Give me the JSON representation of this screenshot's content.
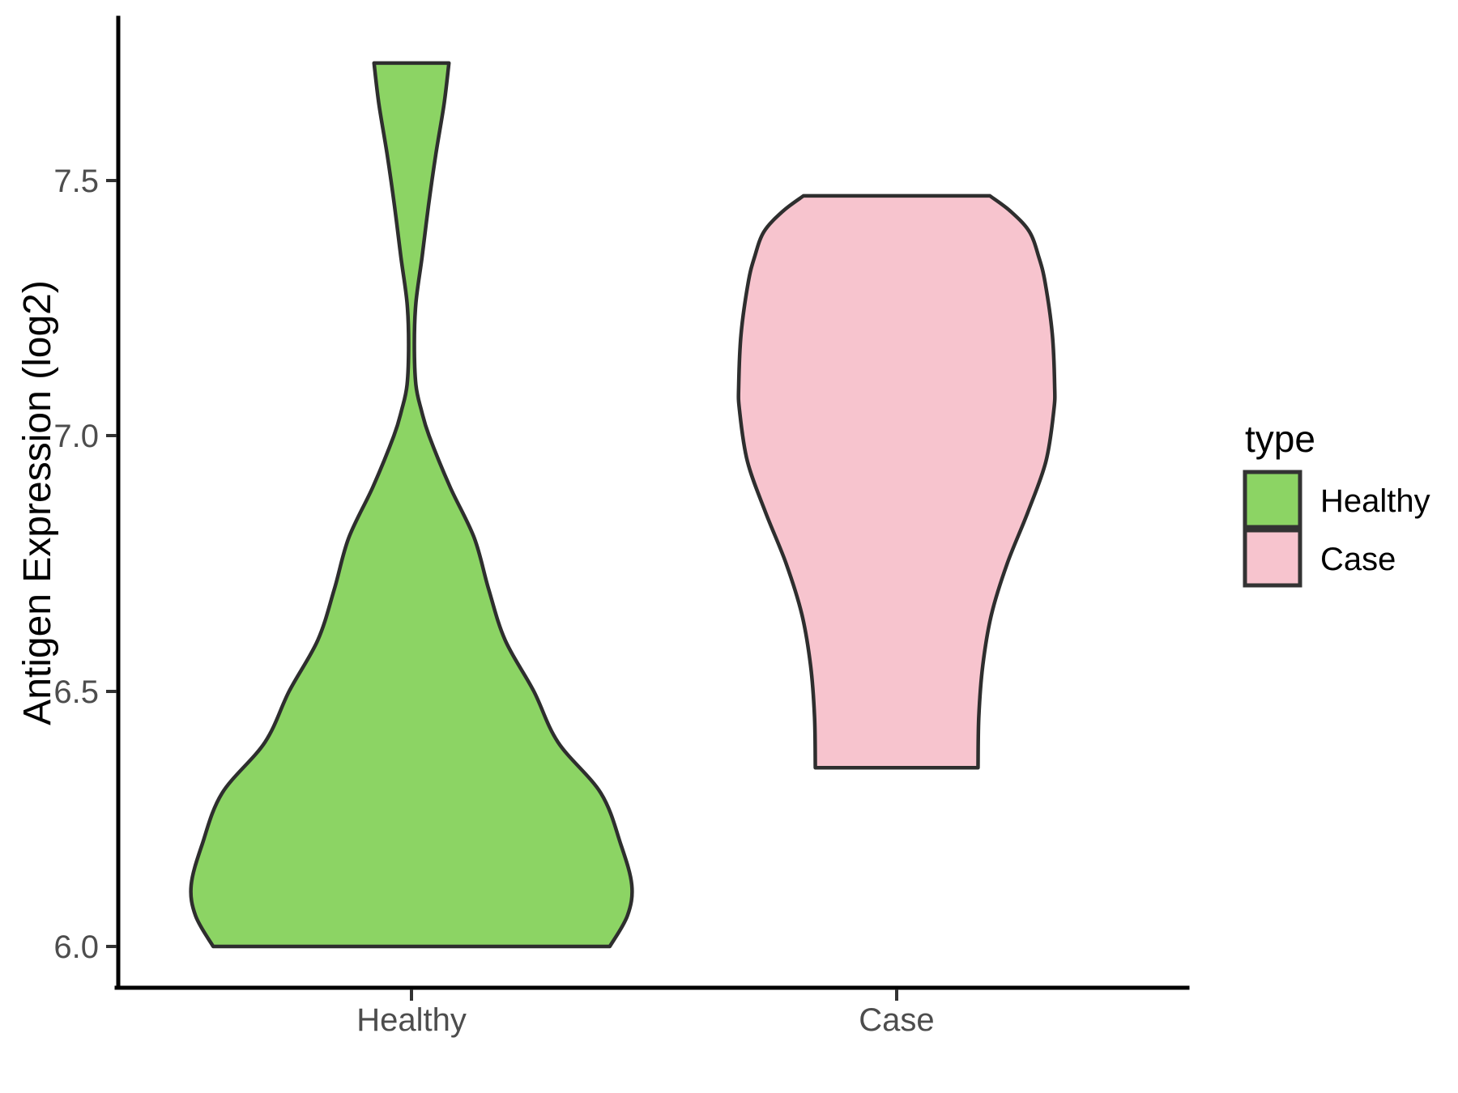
{
  "chart_data": {
    "type": "violin",
    "title": "",
    "xlabel": "",
    "ylabel": "Antigen Expression (log2)",
    "categories": [
      "Healthy",
      "Case"
    ],
    "y_ticks": [
      {
        "label": "7.5",
        "value": 7.5
      },
      {
        "label": "7.0",
        "value": 7.0
      },
      {
        "label": "6.5",
        "value": 6.5
      },
      {
        "label": "6.0",
        "value": 6.0
      }
    ],
    "ylim": [
      5.92,
      7.82
    ],
    "grid": "off",
    "legend": {
      "title": "type",
      "position": "right",
      "entries": [
        {
          "label": "Healthy",
          "color": "#8CD464"
        },
        {
          "label": "Case",
          "color": "#F7C4CE"
        }
      ]
    },
    "series": [
      {
        "name": "Healthy",
        "x": 1,
        "color": "#8CD464",
        "trim_range": [
          6.0,
          7.73
        ],
        "profile": [
          [
            6.0,
            0.9
          ],
          [
            6.06,
            0.98
          ],
          [
            6.12,
            1.0
          ],
          [
            6.2,
            0.95
          ],
          [
            6.3,
            0.86
          ],
          [
            6.4,
            0.665
          ],
          [
            6.5,
            0.555
          ],
          [
            6.6,
            0.425
          ],
          [
            6.7,
            0.35
          ],
          [
            6.8,
            0.285
          ],
          [
            6.9,
            0.175
          ],
          [
            7.0,
            0.08
          ],
          [
            7.05,
            0.045
          ],
          [
            7.1,
            0.02
          ],
          [
            7.18,
            0.013
          ],
          [
            7.26,
            0.02
          ],
          [
            7.35,
            0.048
          ],
          [
            7.45,
            0.077
          ],
          [
            7.55,
            0.11
          ],
          [
            7.65,
            0.148
          ],
          [
            7.73,
            0.17
          ]
        ]
      },
      {
        "name": "Case",
        "x": 2,
        "color": "#F7C4CE",
        "trim_range": [
          6.35,
          7.47
        ],
        "profile": [
          [
            6.35,
            0.515
          ],
          [
            6.45,
            0.52
          ],
          [
            6.55,
            0.545
          ],
          [
            6.65,
            0.6
          ],
          [
            6.75,
            0.7
          ],
          [
            6.85,
            0.83
          ],
          [
            6.95,
            0.945
          ],
          [
            7.05,
            0.995
          ],
          [
            7.1,
            1.0
          ],
          [
            7.2,
            0.985
          ],
          [
            7.3,
            0.94
          ],
          [
            7.35,
            0.9
          ],
          [
            7.4,
            0.84
          ],
          [
            7.44,
            0.72
          ],
          [
            7.47,
            0.59
          ]
        ]
      }
    ],
    "style": {
      "outline_color": "#2E2E2E",
      "axis_color": "#000000",
      "tick_color": "#333333",
      "tick_text_color": "#4D4D4D",
      "title_text_color": "#000000",
      "legend_key_border": "#333333"
    }
  }
}
